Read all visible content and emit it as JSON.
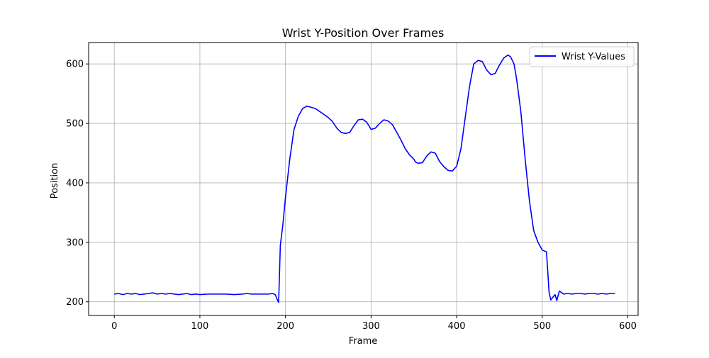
{
  "chart_data": {
    "type": "line",
    "title": "Wrist Y-Position Over Frames",
    "xlabel": "Frame",
    "ylabel": "Position",
    "xlim": [
      -30,
      612
    ],
    "ylim": [
      177,
      636
    ],
    "xticks": [
      0,
      100,
      200,
      300,
      400,
      500,
      600
    ],
    "yticks": [
      200,
      300,
      400,
      500,
      600
    ],
    "grid": true,
    "legend": {
      "position": "top-right",
      "entries": [
        "Wrist Y-Values"
      ]
    },
    "series": [
      {
        "name": "Wrist Y-Values",
        "color": "#0000ff",
        "x": [
          0,
          5,
          10,
          15,
          20,
          25,
          30,
          35,
          40,
          45,
          50,
          55,
          60,
          65,
          70,
          75,
          80,
          85,
          90,
          95,
          100,
          110,
          120,
          130,
          140,
          150,
          155,
          160,
          165,
          170,
          175,
          180,
          185,
          188,
          190,
          192,
          194,
          197,
          200,
          205,
          210,
          215,
          220,
          225,
          230,
          235,
          240,
          245,
          250,
          255,
          260,
          265,
          270,
          275,
          280,
          285,
          290,
          295,
          300,
          305,
          310,
          315,
          320,
          325,
          330,
          335,
          340,
          345,
          350,
          352,
          355,
          360,
          365,
          370,
          375,
          380,
          385,
          390,
          395,
          400,
          405,
          410,
          415,
          420,
          425,
          430,
          435,
          440,
          445,
          450,
          455,
          460,
          463,
          467,
          470,
          475,
          480,
          485,
          490,
          495,
          500,
          505,
          508,
          510,
          512,
          515,
          517,
          520,
          525,
          530,
          535,
          540,
          545,
          550,
          555,
          560,
          565,
          570,
          575,
          580,
          585
        ],
        "y": [
          213,
          214,
          212,
          214,
          213,
          214,
          212,
          213,
          214,
          215,
          213,
          214,
          213,
          214,
          213,
          212,
          213,
          214,
          212,
          213,
          212,
          213,
          213,
          213,
          212,
          213,
          214,
          213,
          213,
          213,
          213,
          213,
          214,
          212,
          205,
          199,
          295,
          330,
          375,
          440,
          490,
          512,
          525,
          529,
          527,
          525,
          520,
          515,
          510,
          503,
          492,
          485,
          483,
          485,
          496,
          506,
          507,
          502,
          490,
          492,
          500,
          506,
          504,
          498,
          485,
          472,
          457,
          447,
          440,
          435,
          433,
          434,
          445,
          452,
          450,
          436,
          427,
          421,
          420,
          428,
          457,
          510,
          562,
          600,
          606,
          604,
          590,
          582,
          584,
          598,
          610,
          615,
          612,
          600,
          575,
          520,
          440,
          370,
          320,
          300,
          287,
          284,
          215,
          203,
          207,
          212,
          202,
          218,
          213,
          214,
          213,
          214,
          214,
          213,
          214,
          214,
          213,
          214,
          213,
          214,
          214
        ]
      }
    ]
  }
}
